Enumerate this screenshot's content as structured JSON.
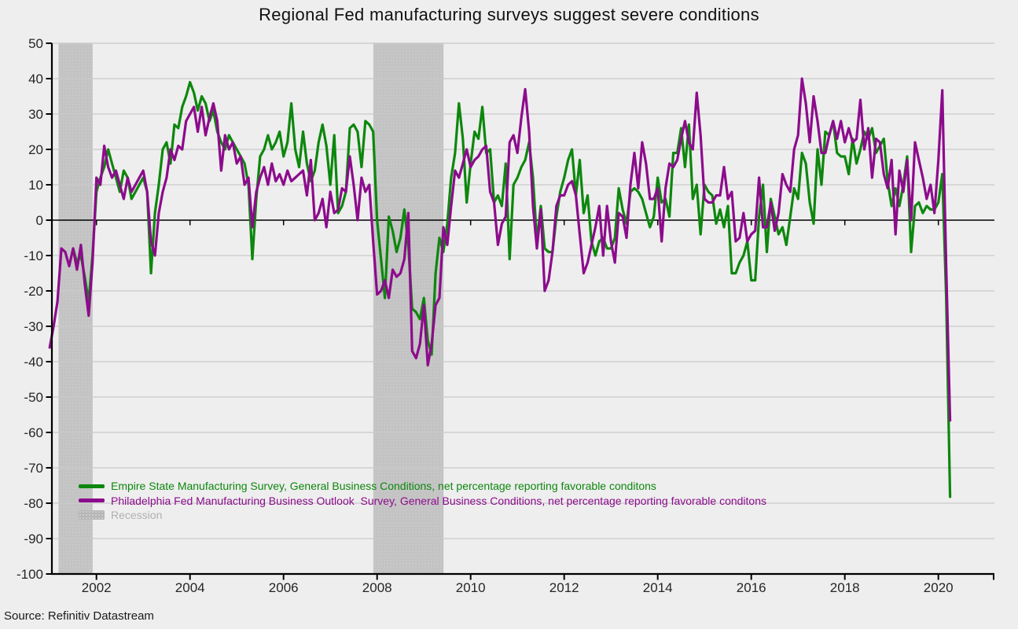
{
  "title": "Regional Fed manufacturing surveys suggest severe conditions",
  "source": "Source: Refinitiv Datastream",
  "colors": {
    "background": "#eeeeee",
    "gridline": "#c9c9c9",
    "axis": "#000000",
    "tick_label": "#262626",
    "zero_line": "#000000",
    "recession_band": "#c3c3c3",
    "recession_band_dot": "#d2d2d2",
    "recession_legend_swatch": "#b6b6b6",
    "recession_text": "#b0b0b0",
    "empire_green": "#0d870d",
    "philly_purple": "#8c0b8c"
  },
  "chart_data": {
    "type": "line",
    "title": "Regional Fed manufacturing surveys suggest severe conditions",
    "xlabel": "",
    "ylabel": "",
    "ylim": [
      -100,
      50
    ],
    "y_ticks": [
      50,
      40,
      30,
      20,
      10,
      0,
      -10,
      -20,
      -30,
      -40,
      -50,
      -60,
      -70,
      -80,
      -90,
      -100
    ],
    "x_ticks": [
      2002,
      2004,
      2006,
      2008,
      2010,
      2012,
      2014,
      2016,
      2018,
      2020
    ],
    "x_range": [
      2001,
      2021.2
    ],
    "grid": "horizontal",
    "legend_position": "inside-bottom-left",
    "recession_label": "Recession",
    "recessions": [
      {
        "start_year": 2001.19,
        "end_year": 2001.92
      },
      {
        "start_year": 2007.92,
        "end_year": 2009.42
      }
    ],
    "series": [
      {
        "id": "empire",
        "label": "Empire State Manufacturing Survey, General Business Conditions, net percentage reporting favorable conditons",
        "color": "#0d870d",
        "frequency": "monthly",
        "start_year": 2001,
        "start_month": 7,
        "values": [
          -8,
          -12,
          -10,
          -16,
          -23,
          -10,
          8,
          12,
          15,
          20,
          16,
          12,
          8,
          14,
          12,
          6,
          8,
          10,
          12,
          8,
          -15,
          2,
          10,
          20,
          22,
          16,
          27,
          26,
          32,
          35,
          39,
          36,
          31,
          35,
          33,
          28,
          31,
          25,
          22,
          20,
          24,
          22,
          20,
          18,
          16,
          10,
          -11,
          6,
          18,
          20,
          24,
          20,
          22,
          25,
          18,
          22,
          33,
          20,
          15,
          25,
          16,
          11,
          14,
          22,
          27,
          21,
          10,
          24,
          2,
          4,
          8,
          26,
          27,
          25,
          15,
          28,
          27,
          25,
          0,
          -11,
          -22,
          1,
          -3,
          -9,
          -5,
          3,
          -7,
          -25,
          -26,
          -28,
          -22,
          -34,
          -38,
          -15,
          -5,
          -9,
          -1,
          12,
          19,
          33,
          23,
          5,
          16,
          25,
          23,
          32,
          19,
          20,
          5,
          7,
          4,
          16,
          -11,
          10,
          12,
          15,
          17,
          22,
          12,
          -6,
          4,
          -8,
          -9,
          -9,
          1,
          8,
          12,
          17,
          20,
          7,
          17,
          2,
          7,
          -6,
          -10,
          -6,
          -5,
          -8,
          -8,
          -5,
          9,
          3,
          -1,
          8,
          9,
          8,
          6,
          2,
          -2,
          1,
          12,
          5,
          6,
          1,
          19,
          19,
          26,
          15,
          27,
          6,
          10,
          -4,
          10,
          8,
          7,
          -1,
          3,
          -2,
          4,
          -15,
          -15,
          -12,
          -10,
          -6,
          -17,
          -17,
          1,
          10,
          -9,
          6,
          1,
          -4,
          -2,
          -7,
          1,
          9,
          6,
          19,
          16,
          5,
          -1,
          20,
          10,
          25,
          24,
          28,
          19,
          18,
          18,
          13,
          23,
          16,
          20,
          25,
          23,
          26,
          19,
          21,
          23,
          11,
          4,
          9,
          4,
          10,
          18,
          -9,
          4,
          5,
          2,
          4,
          3,
          3,
          5,
          13,
          -21.5,
          -78.2
        ]
      },
      {
        "id": "philadelphia",
        "label": "Philadelphia Fed Manufacturing Business Outlook  Survey, General Business Conditions, net percentage reporting favorable conditons",
        "color": "#8c0b8c",
        "frequency": "monthly",
        "start_year": 2001,
        "start_month": 1,
        "values": [
          -36,
          -30,
          -23,
          -8,
          -9,
          -13,
          -8,
          -14,
          -7,
          -18,
          -27,
          -12,
          12,
          10,
          21,
          15,
          12,
          14,
          10,
          6,
          12,
          8,
          10,
          12,
          14,
          8,
          -6,
          -10,
          2,
          8,
          12,
          20,
          17,
          21,
          20,
          28,
          30,
          32,
          25,
          32,
          24,
          29,
          33,
          28,
          14,
          24,
          20,
          22,
          16,
          18,
          10,
          12,
          -2,
          8,
          12,
          15,
          10,
          16,
          11,
          13,
          10,
          14,
          11,
          12,
          13,
          14,
          7,
          17,
          0,
          2,
          6,
          -2,
          8,
          2,
          3,
          9,
          8,
          18,
          10,
          0,
          12,
          8,
          10,
          -6,
          -21,
          -20,
          -17,
          -22,
          -14,
          -16,
          -15,
          -11,
          2,
          -37,
          -39,
          -35,
          -24,
          -41,
          -35,
          -24,
          -22,
          -2,
          -7,
          4,
          14,
          12,
          16,
          20,
          15,
          17,
          18,
          20,
          21,
          8,
          5,
          -7,
          -1,
          1,
          22,
          24,
          19,
          29,
          37,
          25,
          4,
          -8,
          3,
          -20,
          -17,
          -9,
          4,
          7,
          7,
          10,
          11,
          7,
          -4,
          -15,
          -12,
          -7,
          -2,
          4,
          -10,
          4,
          -6,
          -12,
          2,
          1,
          -5,
          10,
          19,
          9,
          22,
          16,
          6,
          6,
          9,
          -6,
          9,
          16,
          15,
          17,
          23,
          28,
          22,
          20,
          36,
          24,
          6,
          5,
          5,
          7,
          7,
          15,
          6,
          8,
          -6,
          -5,
          2,
          -6,
          -4,
          -3,
          12,
          -2,
          -2,
          5,
          -3,
          2,
          13,
          10,
          8,
          20,
          24,
          40,
          33,
          22,
          35,
          28,
          19,
          19,
          24,
          28,
          23,
          28,
          22,
          26,
          22,
          23,
          34,
          20,
          26,
          12,
          23,
          22,
          13,
          9,
          17,
          -4,
          14,
          8,
          17,
          0,
          22,
          17,
          12,
          6,
          10,
          2,
          17,
          36.7,
          -12.7,
          -56.6
        ]
      }
    ]
  }
}
